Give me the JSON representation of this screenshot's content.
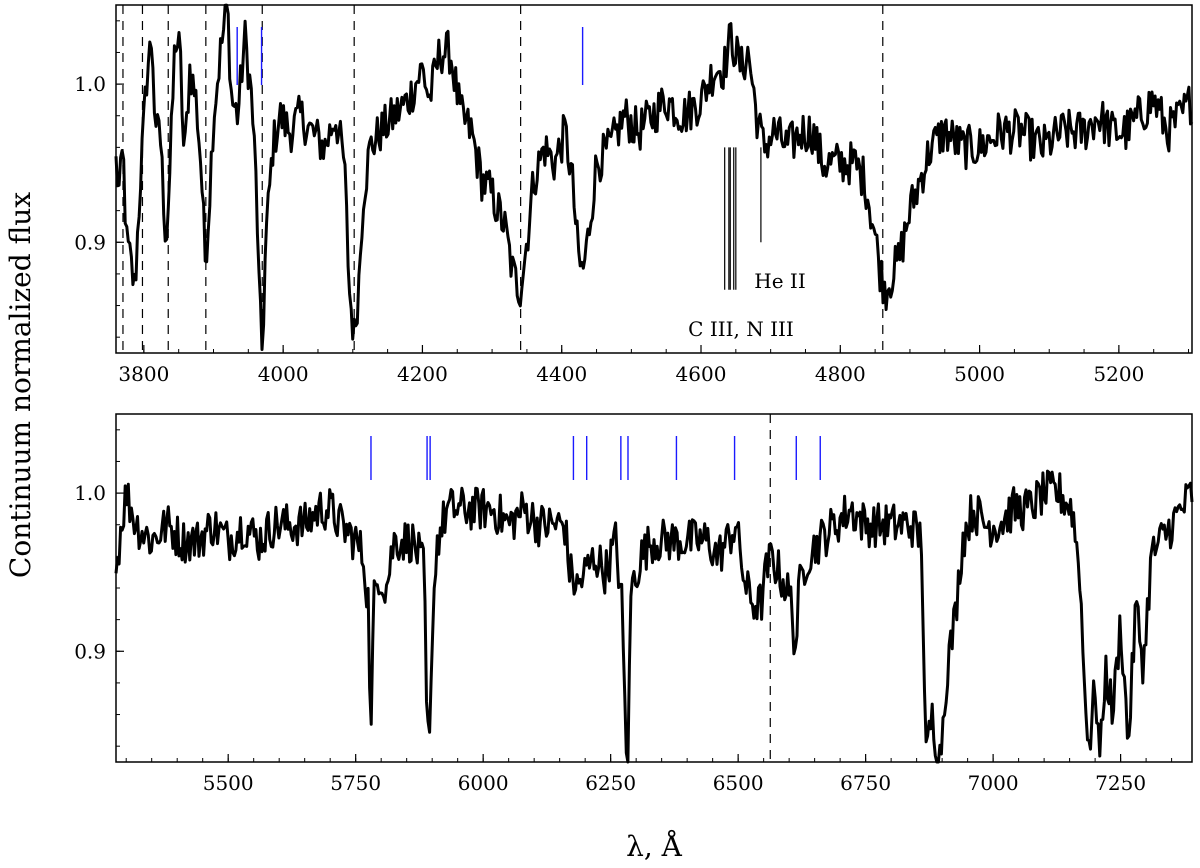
{
  "chart_data": [
    {
      "type": "line",
      "panel": "top",
      "xlim": [
        3760,
        5305
      ],
      "ylim": [
        0.83,
        1.05
      ],
      "xticks": [
        3800,
        4000,
        4200,
        4400,
        4600,
        4800,
        5000,
        5200
      ],
      "yticks": [
        0.9,
        1.0
      ],
      "xtick_labels": [
        "3800",
        "4000",
        "4200",
        "4400",
        "4600",
        "4800",
        "5000",
        "5200"
      ],
      "ytick_labels": [
        "0.9",
        "1.0"
      ],
      "dashed_lines": [
        3770,
        3798,
        3835,
        3889,
        3970,
        4102,
        4341,
        4861
      ],
      "blue_markers": [
        3934,
        3969,
        4430
      ],
      "vertical_marks_black": [
        4634,
        4640,
        4642,
        4647,
        4650,
        4686
      ],
      "annotations": [
        {
          "text": "He II",
          "x": 4720,
          "y": 0.878
        },
        {
          "text": "C III, N III",
          "x": 4675,
          "y": 0.85
        }
      ],
      "series": [
        {
          "color": "#000000",
          "anchors": [
            [
              3760,
              0.95
            ],
            [
              3765,
              0.93
            ],
            [
              3770,
              0.96
            ],
            [
              3775,
              0.9
            ],
            [
              3780,
              0.89
            ],
            [
              3787,
              0.87
            ],
            [
              3795,
              0.94
            ],
            [
              3805,
              1.01
            ],
            [
              3812,
              1.03
            ],
            [
              3817,
              0.96
            ],
            [
              3822,
              0.98
            ],
            [
              3828,
              0.93
            ],
            [
              3832,
              0.9
            ],
            [
              3838,
              0.95
            ],
            [
              3845,
              1.03
            ],
            [
              3852,
              1.02
            ],
            [
              3858,
              0.95
            ],
            [
              3866,
              1.01
            ],
            [
              3875,
              0.99
            ],
            [
              3882,
              0.95
            ],
            [
              3888,
              0.89
            ],
            [
              3892,
              0.91
            ],
            [
              3900,
              0.98
            ],
            [
              3910,
              1.02
            ],
            [
              3920,
              1.05
            ],
            [
              3926,
              0.99
            ],
            [
              3935,
              0.98
            ],
            [
              3945,
              1.03
            ],
            [
              3955,
              0.99
            ],
            [
              3962,
              0.93
            ],
            [
              3966,
              0.86
            ],
            [
              3970,
              0.83
            ],
            [
              3975,
              0.9
            ],
            [
              3985,
              0.96
            ],
            [
              3995,
              0.98
            ],
            [
              4010,
              0.97
            ],
            [
              4025,
              0.98
            ],
            [
              4040,
              0.97
            ],
            [
              4060,
              0.96
            ],
            [
              4075,
              0.98
            ],
            [
              4088,
              0.95
            ],
            [
              4095,
              0.87
            ],
            [
              4102,
              0.84
            ],
            [
              4108,
              0.87
            ],
            [
              4115,
              0.93
            ],
            [
              4125,
              0.96
            ],
            [
              4140,
              0.97
            ],
            [
              4160,
              0.98
            ],
            [
              4180,
              0.99
            ],
            [
              4200,
              1.01
            ],
            [
              4210,
              0.99
            ],
            [
              4225,
              1.02
            ],
            [
              4240,
              1.02
            ],
            [
              4255,
              0.98
            ],
            [
              4270,
              0.97
            ],
            [
              4285,
              0.94
            ],
            [
              4300,
              0.93
            ],
            [
              4318,
              0.91
            ],
            [
              4330,
              0.88
            ],
            [
              4340,
              0.87
            ],
            [
              4347,
              0.89
            ],
            [
              4360,
              0.94
            ],
            [
              4375,
              0.96
            ],
            [
              4390,
              0.95
            ],
            [
              4405,
              0.97
            ],
            [
              4415,
              0.94
            ],
            [
              4424,
              0.89
            ],
            [
              4430,
              0.88
            ],
            [
              4437,
              0.9
            ],
            [
              4450,
              0.95
            ],
            [
              4470,
              0.96
            ],
            [
              4490,
              0.98
            ],
            [
              4510,
              0.97
            ],
            [
              4530,
              0.98
            ],
            [
              4550,
              0.99
            ],
            [
              4575,
              0.98
            ],
            [
              4600,
              0.99
            ],
            [
              4620,
              1.01
            ],
            [
              4633,
              1.01
            ],
            [
              4643,
              1.03
            ],
            [
              4650,
              1.02
            ],
            [
              4658,
              1.01
            ],
            [
              4668,
              1.02
            ],
            [
              4680,
              0.98
            ],
            [
              4690,
              0.96
            ],
            [
              4705,
              0.97
            ],
            [
              4725,
              0.96
            ],
            [
              4745,
              0.97
            ],
            [
              4760,
              0.97
            ],
            [
              4775,
              0.95
            ],
            [
              4790,
              0.95
            ],
            [
              4805,
              0.95
            ],
            [
              4820,
              0.95
            ],
            [
              4835,
              0.94
            ],
            [
              4848,
              0.91
            ],
            [
              4858,
              0.88
            ],
            [
              4865,
              0.87
            ],
            [
              4875,
              0.88
            ],
            [
              4885,
              0.89
            ],
            [
              4900,
              0.92
            ],
            [
              4915,
              0.94
            ],
            [
              4930,
              0.96
            ],
            [
              4950,
              0.97
            ],
            [
              4975,
              0.96
            ],
            [
              5000,
              0.96
            ],
            [
              5030,
              0.97
            ],
            [
              5060,
              0.97
            ],
            [
              5090,
              0.96
            ],
            [
              5120,
              0.97
            ],
            [
              5150,
              0.97
            ],
            [
              5170,
              0.98
            ],
            [
              5190,
              0.97
            ],
            [
              5210,
              0.97
            ],
            [
              5230,
              0.98
            ],
            [
              5250,
              0.99
            ],
            [
              5270,
              0.97
            ],
            [
              5290,
              0.98
            ],
            [
              5305,
              0.99
            ]
          ]
        }
      ]
    },
    {
      "type": "line",
      "panel": "bottom",
      "xlim": [
        5280,
        7390
      ],
      "ylim": [
        0.83,
        1.05
      ],
      "xticks": [
        5500,
        5750,
        6000,
        6250,
        6500,
        6750,
        7000,
        7250
      ],
      "yticks": [
        0.9,
        1.0
      ],
      "xtick_labels": [
        "5500",
        "5750",
        "6000",
        "6250",
        "6500",
        "6750",
        "7000",
        "7250"
      ],
      "ytick_labels": [
        "0.9",
        "1.0"
      ],
      "xlabel": "λ, Å",
      "dashed_lines": [
        6563
      ],
      "blue_markers": [
        5780,
        5890,
        5896,
        6177,
        6203,
        6270,
        6284,
        6379,
        6493,
        6614,
        6661
      ],
      "series": [
        {
          "color": "#000000",
          "anchors": [
            [
              5280,
              0.95
            ],
            [
              5290,
              0.98
            ],
            [
              5300,
              1.0
            ],
            [
              5320,
              0.98
            ],
            [
              5350,
              0.97
            ],
            [
              5380,
              0.98
            ],
            [
              5410,
              0.97
            ],
            [
              5440,
              0.97
            ],
            [
              5470,
              0.98
            ],
            [
              5500,
              0.97
            ],
            [
              5530,
              0.98
            ],
            [
              5560,
              0.97
            ],
            [
              5590,
              0.98
            ],
            [
              5620,
              0.98
            ],
            [
              5650,
              0.98
            ],
            [
              5680,
              0.99
            ],
            [
              5700,
              0.99
            ],
            [
              5720,
              0.98
            ],
            [
              5750,
              0.97
            ],
            [
              5765,
              0.96
            ],
            [
              5775,
              0.93
            ],
            [
              5780,
              0.84
            ],
            [
              5785,
              0.93
            ],
            [
              5795,
              0.95
            ],
            [
              5810,
              0.94
            ],
            [
              5825,
              0.97
            ],
            [
              5845,
              0.97
            ],
            [
              5860,
              0.97
            ],
            [
              5875,
              0.96
            ],
            [
              5885,
              0.95
            ],
            [
              5890,
              0.83
            ],
            [
              5893,
              0.86
            ],
            [
              5896,
              0.83
            ],
            [
              5900,
              0.92
            ],
            [
              5910,
              0.97
            ],
            [
              5930,
              0.99
            ],
            [
              5960,
              0.99
            ],
            [
              5990,
              0.99
            ],
            [
              6020,
              0.99
            ],
            [
              6050,
              0.98
            ],
            [
              6080,
              0.99
            ],
            [
              6110,
              0.98
            ],
            [
              6140,
              0.98
            ],
            [
              6160,
              0.98
            ],
            [
              6170,
              0.95
            ],
            [
              6185,
              0.94
            ],
            [
              6200,
              0.95
            ],
            [
              6220,
              0.96
            ],
            [
              6240,
              0.95
            ],
            [
              6260,
              0.97
            ],
            [
              6272,
              0.93
            ],
            [
              6280,
              0.84
            ],
            [
              6284,
              0.83
            ],
            [
              6290,
              0.94
            ],
            [
              6310,
              0.96
            ],
            [
              6330,
              0.97
            ],
            [
              6350,
              0.97
            ],
            [
              6380,
              0.97
            ],
            [
              6410,
              0.97
            ],
            [
              6440,
              0.97
            ],
            [
              6460,
              0.96
            ],
            [
              6480,
              0.97
            ],
            [
              6495,
              0.98
            ],
            [
              6505,
              0.96
            ],
            [
              6515,
              0.94
            ],
            [
              6530,
              0.93
            ],
            [
              6545,
              0.93
            ],
            [
              6555,
              0.95
            ],
            [
              6565,
              0.96
            ],
            [
              6580,
              0.95
            ],
            [
              6595,
              0.94
            ],
            [
              6605,
              0.93
            ],
            [
              6612,
              0.9
            ],
            [
              6620,
              0.94
            ],
            [
              6635,
              0.96
            ],
            [
              6660,
              0.97
            ],
            [
              6690,
              0.98
            ],
            [
              6720,
              0.99
            ],
            [
              6750,
              0.98
            ],
            [
              6780,
              0.98
            ],
            [
              6810,
              0.98
            ],
            [
              6840,
              0.98
            ],
            [
              6860,
              0.97
            ],
            [
              6868,
              0.83
            ],
            [
              6880,
              0.86
            ],
            [
              6895,
              0.83
            ],
            [
              6910,
              0.89
            ],
            [
              6925,
              0.92
            ],
            [
              6940,
              0.97
            ],
            [
              6960,
              0.99
            ],
            [
              6985,
              0.98
            ],
            [
              7010,
              0.98
            ],
            [
              7040,
              0.99
            ],
            [
              7070,
              0.99
            ],
            [
              7100,
              1.0
            ],
            [
              7130,
              1.0
            ],
            [
              7155,
              0.99
            ],
            [
              7170,
              0.95
            ],
            [
              7180,
              0.87
            ],
            [
              7190,
              0.84
            ],
            [
              7200,
              0.88
            ],
            [
              7210,
              0.83
            ],
            [
              7220,
              0.89
            ],
            [
              7235,
              0.86
            ],
            [
              7250,
              0.92
            ],
            [
              7265,
              0.84
            ],
            [
              7280,
              0.93
            ],
            [
              7295,
              0.89
            ],
            [
              7310,
              0.96
            ],
            [
              7330,
              0.97
            ],
            [
              7350,
              0.98
            ],
            [
              7370,
              0.99
            ],
            [
              7390,
              1.0
            ]
          ]
        }
      ]
    }
  ],
  "shared_ylabel": "Continuum normalized flux",
  "colors": {
    "line": "#000000",
    "marker_blue": "#1a1aff",
    "axes": "#000000"
  }
}
